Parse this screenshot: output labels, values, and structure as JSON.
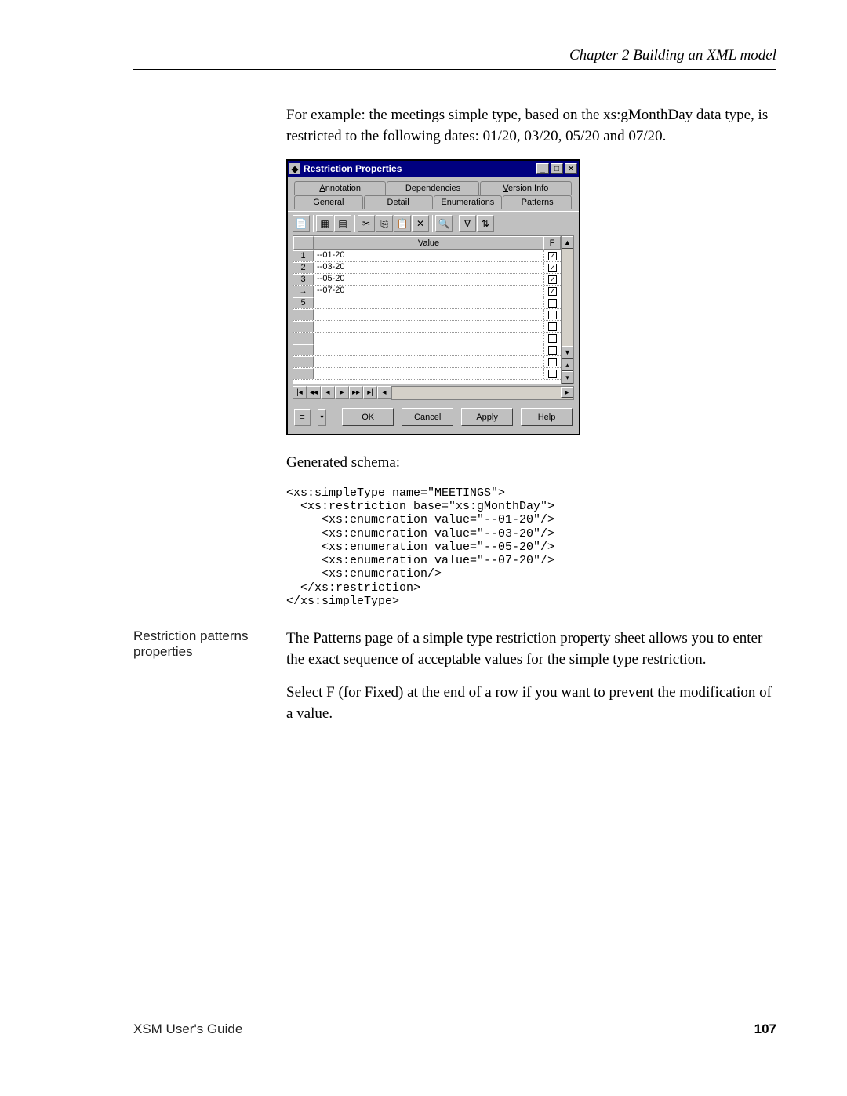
{
  "header": {
    "chapter": "Chapter 2  Building an XML model"
  },
  "para1": "For example: the meetings simple type, based on the xs:gMonthDay data type, is restricted to the following dates: 01/20, 03/20, 05/20 and 07/20.",
  "dialog": {
    "title": "Restriction Properties",
    "tabs_top": {
      "annotation": "Annotation",
      "dependencies": "Dependencies",
      "version": "Version Info"
    },
    "tabs_bottom": {
      "general": "General",
      "detail": "Detail",
      "enumerations": "Enumerations",
      "patterns": "Patterns"
    },
    "columns": {
      "value": "Value",
      "f": "F"
    },
    "rows": [
      {
        "n": "1",
        "value": "--01-20",
        "checked": true
      },
      {
        "n": "2",
        "value": "--03-20",
        "checked": true
      },
      {
        "n": "3",
        "value": "--05-20",
        "checked": true
      },
      {
        "n": "arrow",
        "value": "--07-20",
        "checked": true
      },
      {
        "n": "5",
        "value": "",
        "checked": false
      },
      {
        "n": "",
        "value": "",
        "checked": false
      },
      {
        "n": "",
        "value": "",
        "checked": false
      },
      {
        "n": "",
        "value": "",
        "checked": false
      },
      {
        "n": "",
        "value": "",
        "checked": false
      },
      {
        "n": "",
        "value": "",
        "checked": false
      },
      {
        "n": "",
        "value": "",
        "checked": false
      }
    ],
    "buttons": {
      "ok": "OK",
      "cancel": "Cancel",
      "apply": "Apply",
      "help": "Help"
    }
  },
  "gen_label": "Generated schema:",
  "code": "<xs:simpleType name=\"MEETINGS\">\n  <xs:restriction base=\"xs:gMonthDay\">\n     <xs:enumeration value=\"--01-20\"/>\n     <xs:enumeration value=\"--03-20\"/>\n     <xs:enumeration value=\"--05-20\"/>\n     <xs:enumeration value=\"--07-20\"/>\n     <xs:enumeration/>\n  </xs:restriction>\n</xs:simpleType>",
  "margin_heading": "Restriction patterns properties",
  "para2": "The Patterns page of a simple type restriction property sheet allows you to enter the exact sequence of acceptable values for the simple type restriction.",
  "para3": "Select F (for Fixed) at the end of a row if you want to prevent the modification of a value.",
  "footer": {
    "guide": "XSM User's Guide",
    "page": "107"
  },
  "colors": {
    "titlebar_bg": "#000080",
    "dialog_bg": "#c0c0c0",
    "page_bg": "#ffffff",
    "text": "#000000"
  }
}
